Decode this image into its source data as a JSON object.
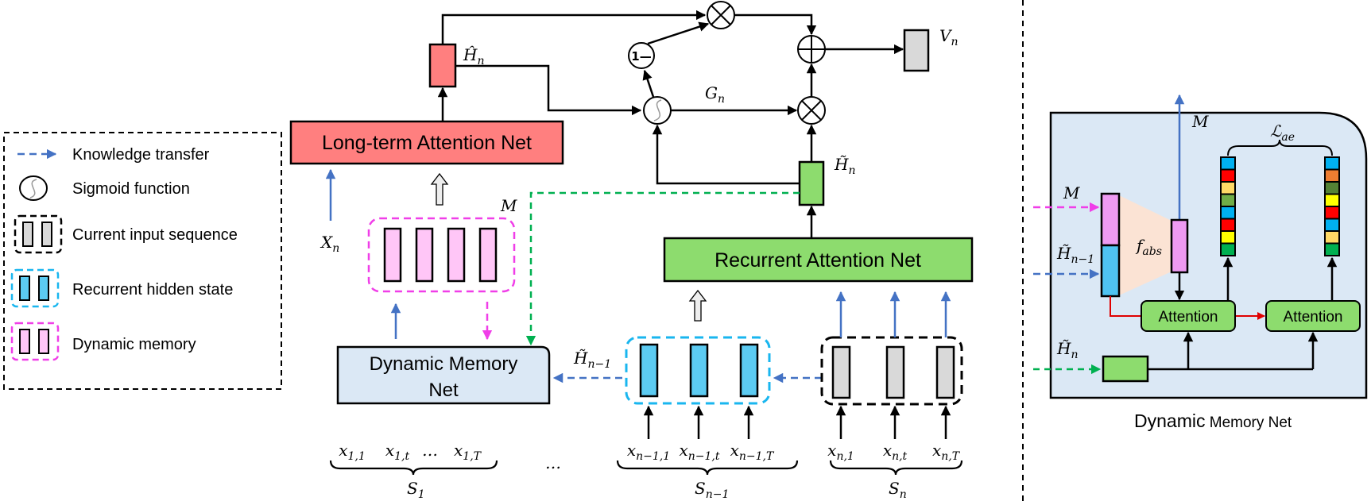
{
  "legend": {
    "items": [
      {
        "label": "Knowledge transfer",
        "icon": "dashed-blue-arrow-icon"
      },
      {
        "label": "Sigmoid function",
        "icon": "sigmoid-icon"
      },
      {
        "label": "Current input sequence",
        "icon": "gray-bars-black-dashed-icon"
      },
      {
        "label": "Recurrent hidden state",
        "icon": "blue-bars-cyan-dashed-icon"
      },
      {
        "label": "Dynamic memory",
        "icon": "pink-bars-pink-dashed-icon"
      }
    ]
  },
  "blocks": {
    "long_term": "Long-term Attention Net",
    "recurrent": "Recurrent Attention Net",
    "dmn_line1": "Dynamic Memory",
    "dmn_line2": "Net",
    "attention1": "Attention",
    "attention2": "Attention",
    "one_minus": "1—"
  },
  "labels": {
    "H_hat": {
      "base": "Ĥ",
      "sub": "n"
    },
    "G": {
      "base": "G",
      "sub": "n"
    },
    "V": {
      "base": "V",
      "sub": "n"
    },
    "H_tilde": {
      "base": "H̃",
      "sub": "n"
    },
    "X": {
      "base": "X",
      "sub": "n"
    },
    "M": "M",
    "H_tilde_prev": {
      "base": "H̃",
      "sub": "n−1"
    },
    "dots_mid": "…",
    "dots_s1": "…"
  },
  "inputs": {
    "s1": [
      {
        "base": "x",
        "sub": "1,1"
      },
      {
        "base": "x",
        "sub": "1,t"
      },
      {
        "base": "x",
        "sub": "1,T"
      }
    ],
    "sn1": [
      {
        "base": "x",
        "sub": "n−1,1"
      },
      {
        "base": "x",
        "sub": "n−1,t"
      },
      {
        "base": "x",
        "sub": "n−1,T"
      }
    ],
    "sn": [
      {
        "base": "x",
        "sub": "n,1"
      },
      {
        "base": "x",
        "sub": "n,t"
      },
      {
        "base": "x",
        "sub": "n,T"
      }
    ]
  },
  "sequences": {
    "s1": {
      "base": "S",
      "sub": "1"
    },
    "sn1": {
      "base": "S",
      "sub": "n−1"
    },
    "sn": {
      "base": "S",
      "sub": "n"
    }
  },
  "panel": {
    "M_out": "M",
    "M_in": "M",
    "H_prev": {
      "base": "H̃",
      "sub": "n−1"
    },
    "H_n": {
      "base": "H̃",
      "sub": "n"
    },
    "f_abs": {
      "base": "f",
      "sub": "abs"
    },
    "L_ae": {
      "base": "ℒ",
      "sub": "ae"
    },
    "caption_big": "Dynamic",
    "caption_small": " Memory Net"
  },
  "colors": {
    "long_term": "#ff7f7f",
    "recurrent": "#8ddc6e",
    "dmn": "#dbe8f5",
    "hidden": "#5ccbf2",
    "memory": "#ffc6f7",
    "input": "#d9d9d9",
    "knowledge_transfer": "#4472c4",
    "vector1": [
      "#00b0f0",
      "#ff0000",
      "#ffd966",
      "#70ad47",
      "#00b0f0",
      "#ff0000",
      "#ffff00",
      "#00b050"
    ],
    "vector2": [
      "#00b0f0",
      "#ed7d31",
      "#548235",
      "#ffff00",
      "#ff0000",
      "#00b0f0",
      "#ffd966",
      "#00b050"
    ]
  }
}
